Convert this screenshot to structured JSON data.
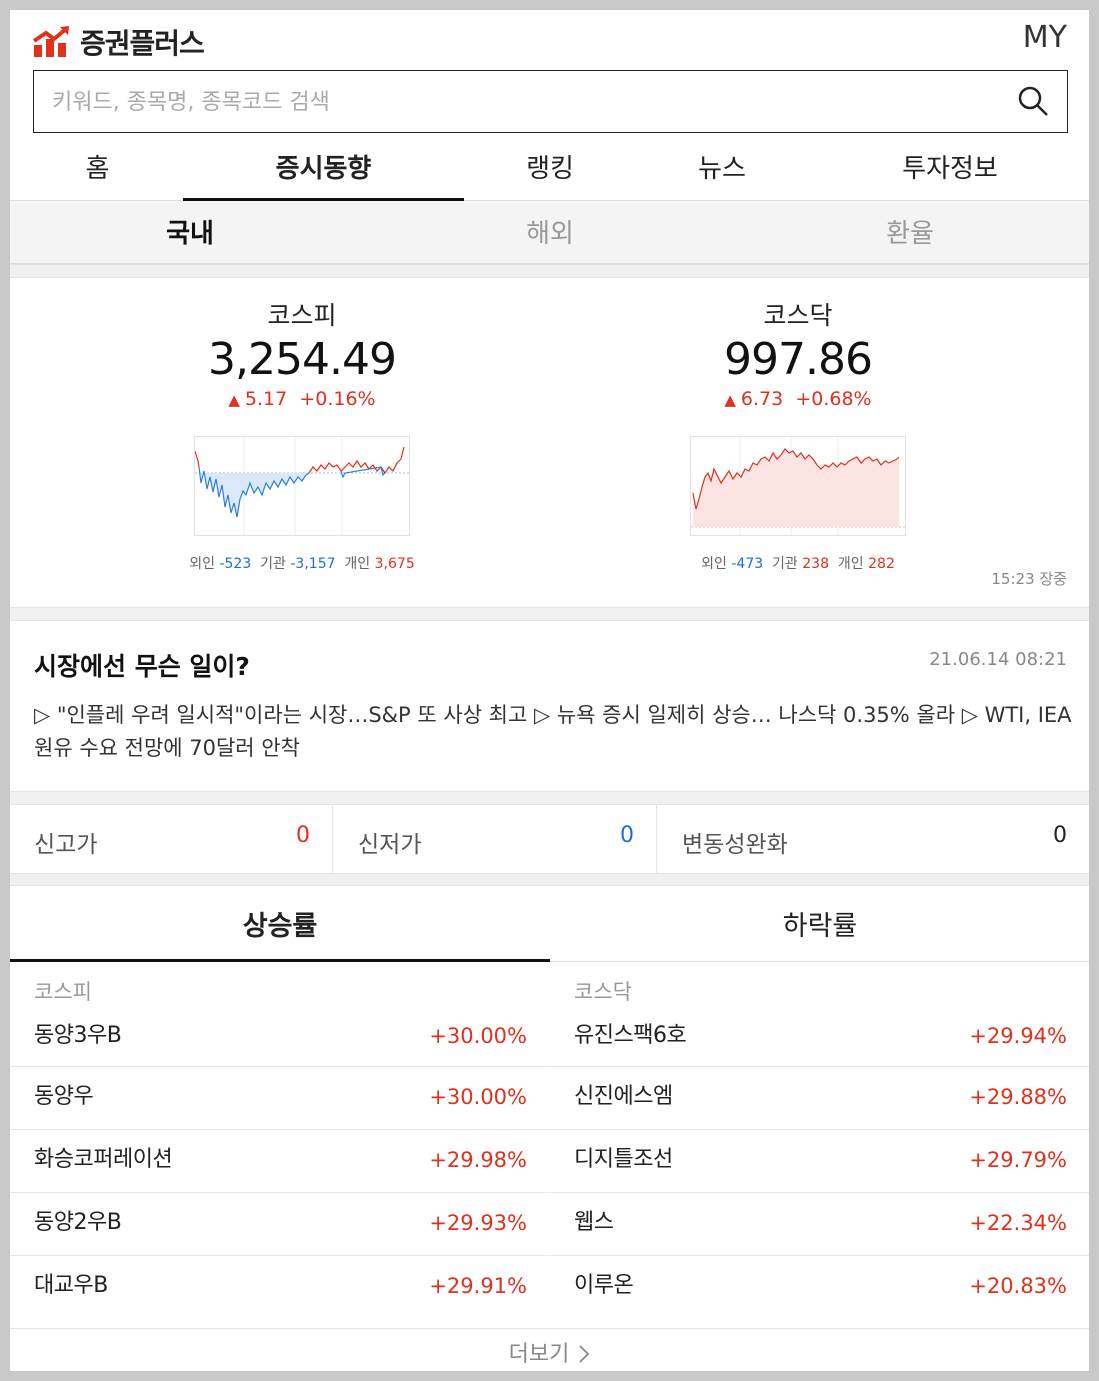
{
  "header": {
    "logo_text": "증권플러스",
    "my_label": "MY"
  },
  "search": {
    "placeholder": "키워드, 종목명, 종목코드 검색",
    "value": ""
  },
  "nav": {
    "items": [
      "홈",
      "증시동향",
      "랭킹",
      "뉴스",
      "투자정보"
    ],
    "active": "증시동향"
  },
  "subnav": {
    "items": [
      "국내",
      "해외",
      "환율"
    ],
    "active": "국내"
  },
  "indices": [
    {
      "name": "코스피",
      "value": "3,254.49",
      "arrow": "▲",
      "change": "5.17",
      "change_pct": "+0.16%",
      "investors": {
        "foreign_label": "외인",
        "foreign": "-523",
        "institution_label": "기관",
        "institution": "-3,157",
        "individual_label": "개인",
        "individual": "3,675"
      }
    },
    {
      "name": "코스닥",
      "value": "997.86",
      "arrow": "▲",
      "change": "6.73",
      "change_pct": "+0.68%",
      "investors": {
        "foreign_label": "외인",
        "foreign": "-473",
        "institution_label": "기관",
        "institution": "238",
        "individual_label": "개인",
        "individual": "282"
      }
    }
  ],
  "time_status": "15:23 장중",
  "news": {
    "title": "시장에선 무슨 일이?",
    "date": "21.06.14 08:21",
    "body": "▷ \"인플레 우려 일시적\"이라는 시장…S&P 또 사상 최고 ▷ 뉴욕 증시 일제히 상승… 나스닥 0.35% 올라 ▷ WTI, IEA 원유 수요 전망에 70달러 안착"
  },
  "stats": [
    {
      "label": "신고가",
      "value": "0",
      "color": "#e0301e"
    },
    {
      "label": "신저가",
      "value": "0",
      "color": "#1b6fd6"
    },
    {
      "label": "변동성완화",
      "value": "0",
      "color": "#222222"
    }
  ],
  "rank_tabs": {
    "items": [
      "상승률",
      "하락률"
    ],
    "active": "상승률"
  },
  "ranking": {
    "kospi": {
      "header": "코스피",
      "rows": [
        {
          "name": "동양3우B",
          "rate": "+30.00%"
        },
        {
          "name": "동양우",
          "rate": "+30.00%"
        },
        {
          "name": "화승코퍼레이션",
          "rate": "+29.98%"
        },
        {
          "name": "동양2우B",
          "rate": "+29.93%"
        },
        {
          "name": "대교우B",
          "rate": "+29.91%"
        }
      ]
    },
    "kosdaq": {
      "header": "코스닥",
      "rows": [
        {
          "name": "유진스팩6호",
          "rate": "+29.94%"
        },
        {
          "name": "신진에스엠",
          "rate": "+29.88%"
        },
        {
          "name": "디지틀조선",
          "rate": "+29.79%"
        },
        {
          "name": "웹스",
          "rate": "+22.34%"
        },
        {
          "name": "이루온",
          "rate": "+20.83%"
        }
      ]
    }
  },
  "more_label": "더보기",
  "colors": {
    "up": "#e0301e",
    "down": "#1b6fd6",
    "brand": "#e0301e"
  }
}
